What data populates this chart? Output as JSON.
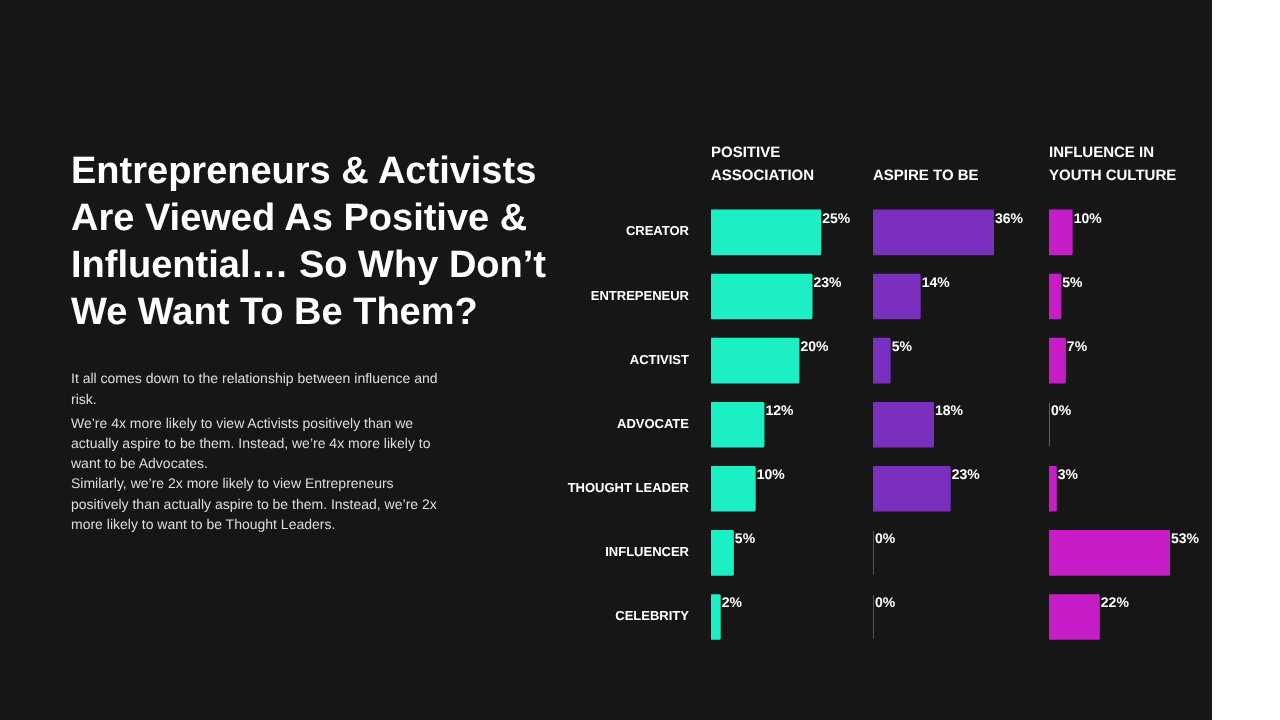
{
  "chart_data": [
    {
      "type": "other",
      "title": "Entrepreneurs & Activists Are Viewed As Positive & Influential… So Why Don’t We Want To Be Them?",
      "annotations": [
        "It all comes down to the relationship between influence and risk.",
        "We’re 4x more likely to view Activists positively than we actually aspire to be them. Instead, we’re 4x more likely to want to be Advocates.",
        "Similarly, we’re 2x more likely to view Entrepreneurs positively than actually aspire to be them. Instead, we’re 2x more likely to want to be Thought Leaders."
      ]
    },
    {
      "type": "bar",
      "orientation": "horizontal",
      "title": "POSITIVE ASSOCIATION",
      "categories": [
        "CREATOR",
        "ENTREPENEUR",
        "ACTIVIST",
        "ADVOCATE",
        "THOUGHT LEADER",
        "INFLUENCER",
        "CELEBRITY"
      ],
      "values": [
        25,
        23,
        20,
        12,
        10,
        5,
        2
      ],
      "value_labels": [
        "25%",
        "23%",
        "20%",
        "12%",
        "10%",
        "5%",
        "2%"
      ],
      "color": "#1cefc3",
      "tick_labels": "y",
      "grid": false
    },
    {
      "type": "bar",
      "orientation": "horizontal",
      "title": "ASPIRE TO BE",
      "values": [
        36,
        14,
        5,
        18,
        23,
        0,
        0
      ],
      "value_labels": [
        "36%",
        "14%",
        "5%",
        "18%",
        "23%",
        "0%",
        "0%"
      ],
      "color": "#7b2fbf",
      "tick_labels": false,
      "grid": false
    },
    {
      "type": "bar",
      "orientation": "horizontal",
      "title": "INFLUENCE IN YOUTH CULTURE",
      "values": [
        10,
        5,
        7,
        0,
        3,
        53,
        22
      ],
      "value_labels": [
        "10%",
        "5%",
        "7%",
        "0%",
        "3%",
        "53%",
        "22%"
      ],
      "color": "#c61dc8",
      "tick_labels": false,
      "grid": false
    }
  ]
}
